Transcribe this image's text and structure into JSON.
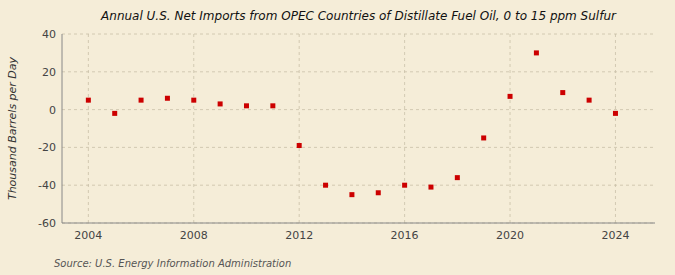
{
  "chart_data": {
    "type": "scatter",
    "title": "Annual U.S. Net Imports from OPEC Countries of Distillate Fuel Oil, 0 to 15 ppm Sulfur",
    "y_label": "Thousand Barrels per Day",
    "annotations": [
      "Source: U.S. Energy Information Administration"
    ],
    "x": [
      2004,
      2005,
      2006,
      2007,
      2008,
      2009,
      2010,
      2011,
      2012,
      2013,
      2014,
      2015,
      2016,
      2017,
      2018,
      2019,
      2020,
      2021,
      2022,
      2023,
      2024
    ],
    "values": [
      5,
      -2,
      5,
      6,
      5,
      3,
      2,
      2,
      -19,
      -40,
      -45,
      -44,
      -40,
      -41,
      -36,
      -15,
      7,
      30,
      9,
      5,
      -2
    ],
    "color": "#cc0000",
    "marker": "square",
    "xlim": [
      2003.0,
      2025.5
    ],
    "ylim": [
      -60,
      40
    ],
    "xticks": [
      2004,
      2008,
      2012,
      2016,
      2020,
      2024
    ],
    "yticks": [
      -60,
      -40,
      -20,
      0,
      20,
      40
    ],
    "grid": true
  }
}
